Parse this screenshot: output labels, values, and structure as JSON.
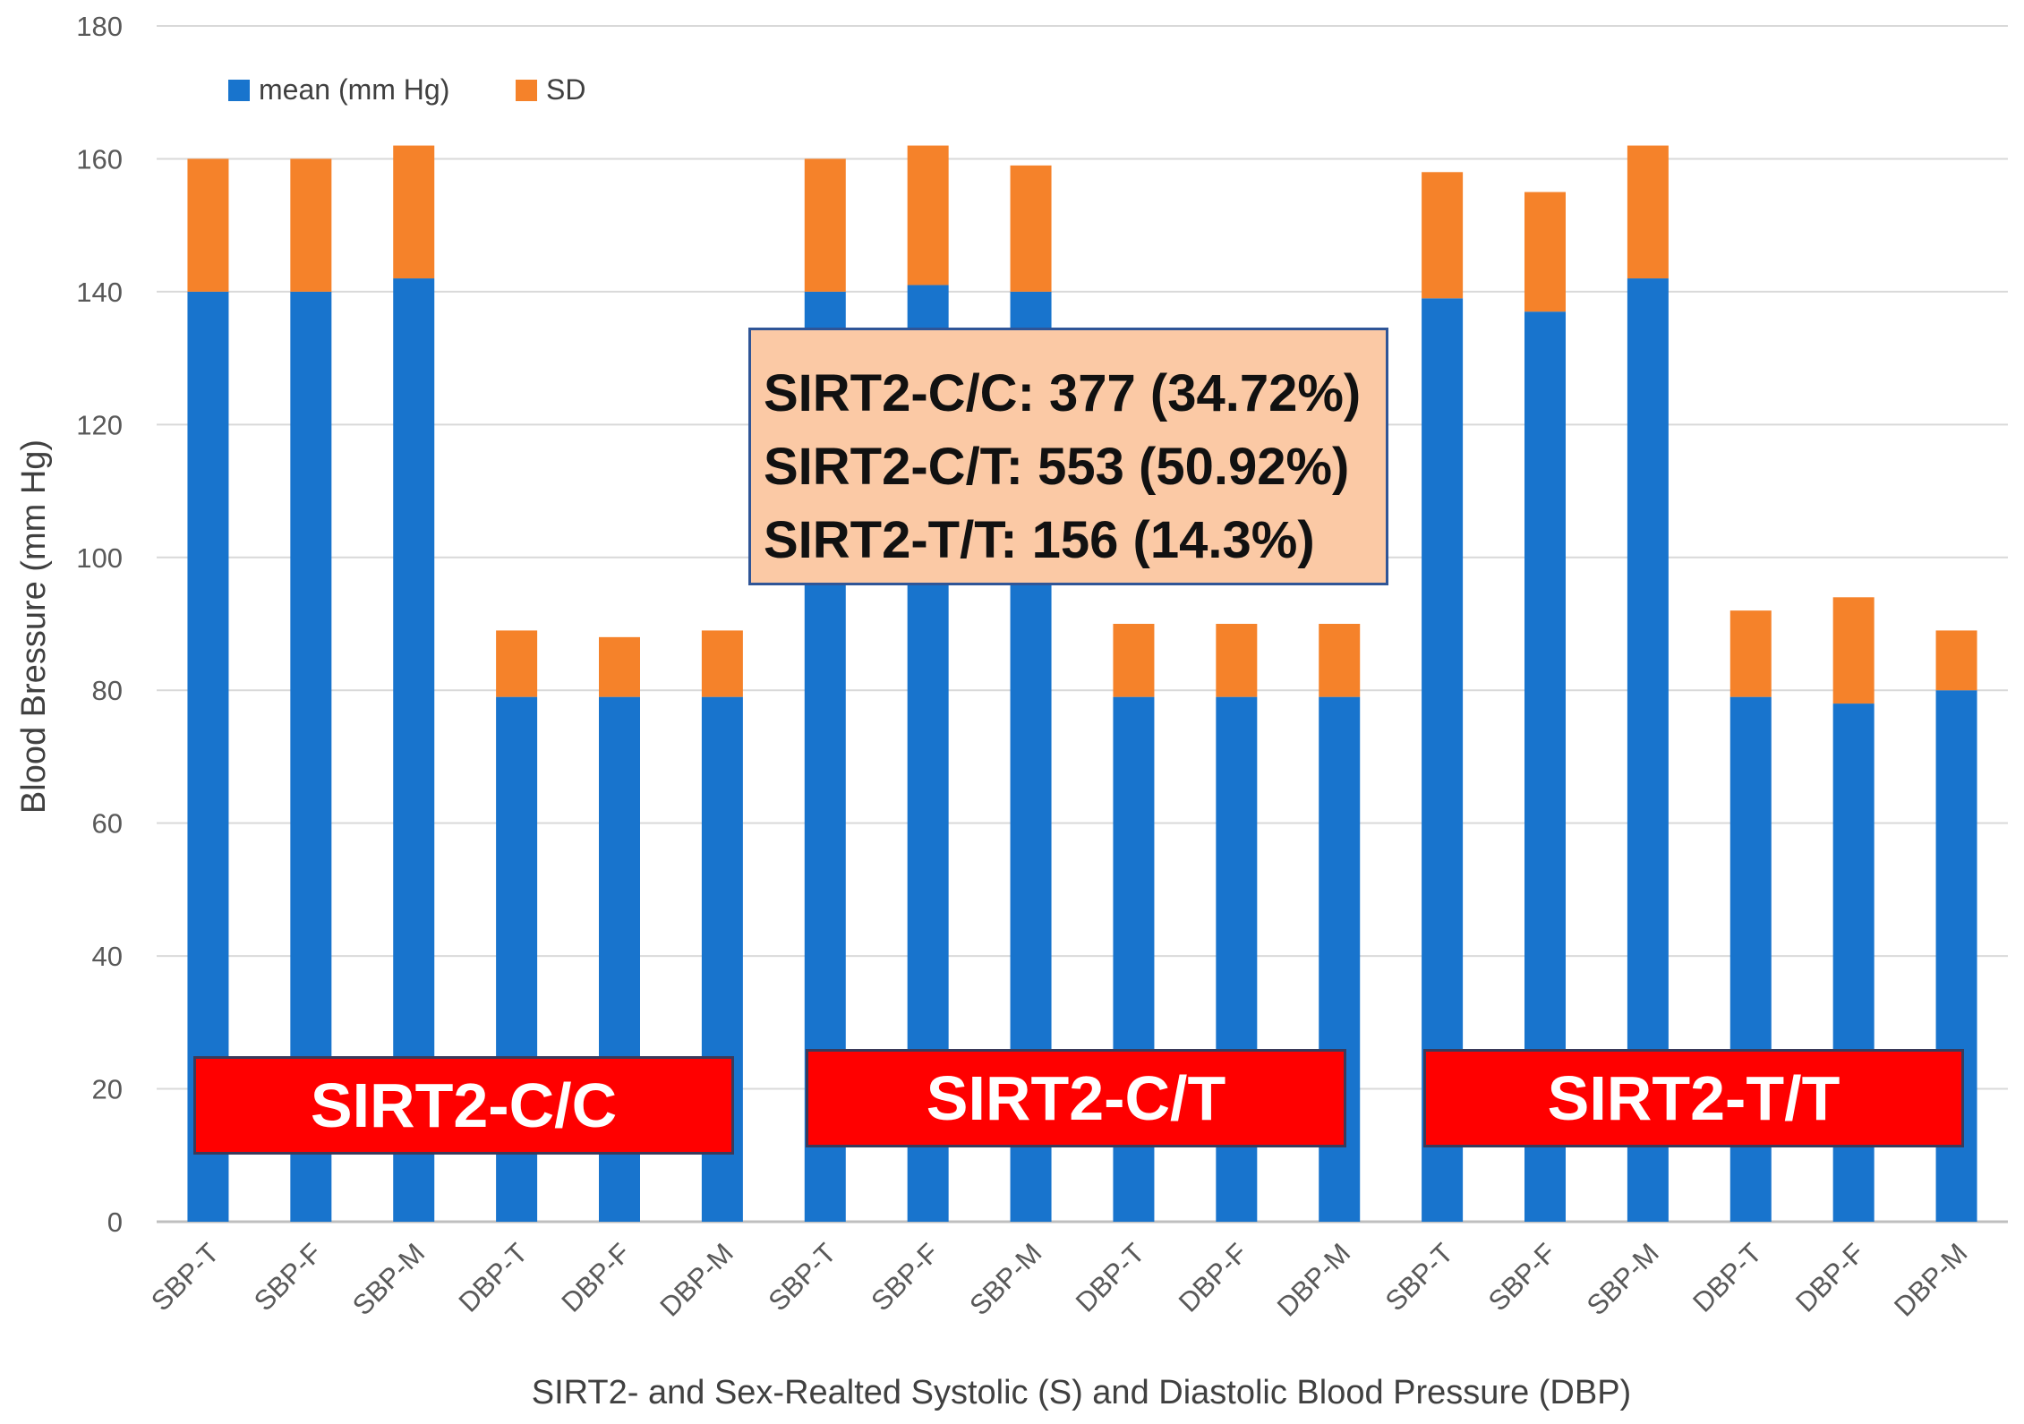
{
  "chart_data": {
    "type": "bar",
    "stacked": true,
    "categories": [
      "SBP-T",
      "SBP-F",
      "SBP-M",
      "DBP-T",
      "DBP-F",
      "DBP-M",
      "SBP-T",
      "SBP-F",
      "SBP-M",
      "DBP-T",
      "DBP-F",
      "DBP-M",
      "SBP-T",
      "SBP-F",
      "SBP-M",
      "DBP-T",
      "DBP-F",
      "DBP-M"
    ],
    "series": [
      {
        "name": "mean (mm Hg)",
        "color": "#1874cd",
        "values": [
          140,
          140,
          142,
          79,
          79,
          79,
          140,
          141,
          140,
          79,
          79,
          79,
          139,
          137,
          142,
          79,
          78,
          80
        ]
      },
      {
        "name": "SD",
        "color": "#f5822a",
        "values": [
          20,
          20,
          20,
          10,
          9,
          10,
          20,
          21,
          19,
          11,
          11,
          11,
          19,
          18,
          20,
          13,
          16,
          9
        ]
      }
    ],
    "ylim": [
      0,
      180
    ],
    "yticks": [
      0,
      20,
      40,
      60,
      80,
      100,
      120,
      140,
      160,
      180
    ],
    "ylabel": "Blood Bressure (mm Hg)",
    "xlabel": "SIRT2- and Sex-Realted Systolic (S) and Diastolic Blood Pressure (DBP)",
    "legend_position": "top-left",
    "grid": true,
    "annotations": {
      "info_box": [
        "SIRT2-C/C: 377 (34.72%)",
        "SIRT2-C/T: 553 (50.92%)",
        "SIRT2-T/T: 156 (14.3%)"
      ],
      "group_labels": [
        "SIRT2-C/C",
        "SIRT2-C/T",
        "SIRT2-T/T"
      ]
    }
  }
}
